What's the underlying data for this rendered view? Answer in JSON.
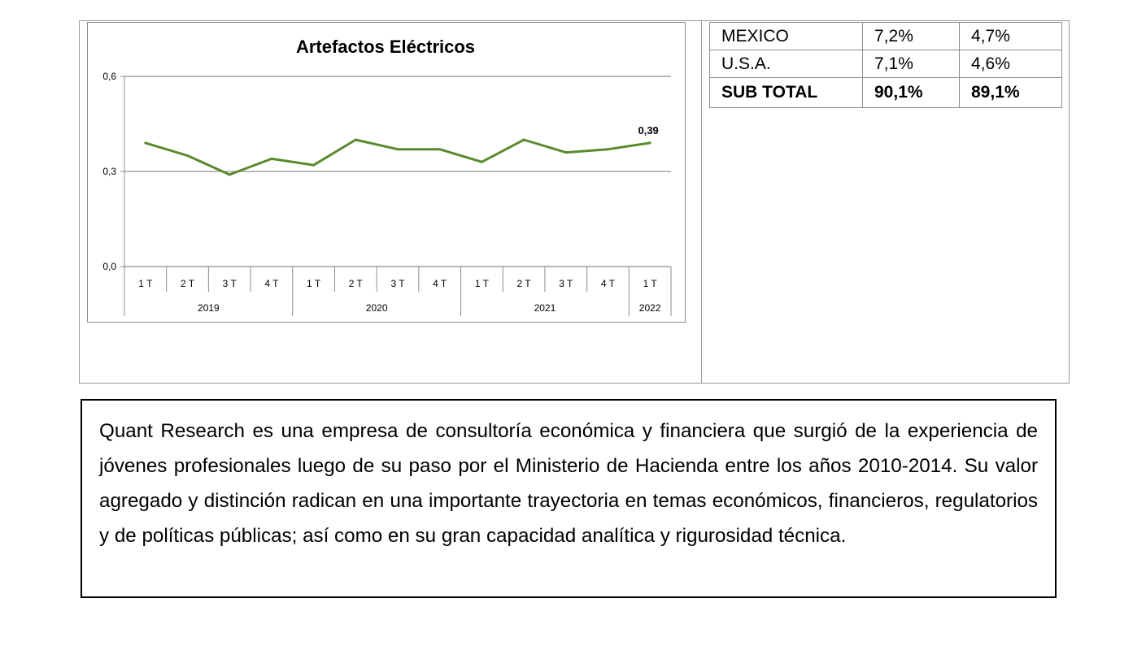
{
  "chart_data": {
    "type": "line",
    "title": "Artefactos Eléctricos",
    "xlabel": "",
    "ylabel": "",
    "ylim": [
      0.0,
      0.6
    ],
    "y_ticks": [
      "0,0",
      "0,3",
      "0,6"
    ],
    "grid": true,
    "categories": [
      "1 T",
      "2 T",
      "3 T",
      "4 T",
      "1 T",
      "2 T",
      "3 T",
      "4 T",
      "1 T",
      "2 T",
      "3 T",
      "4 T",
      "1 T"
    ],
    "category_years": [
      "2019",
      "2019",
      "2019",
      "2019",
      "2020",
      "2020",
      "2020",
      "2020",
      "2021",
      "2021",
      "2021",
      "2021",
      "2022"
    ],
    "year_groups": [
      {
        "label": "2019",
        "count": 4
      },
      {
        "label": "2020",
        "count": 4
      },
      {
        "label": "2021",
        "count": 4
      },
      {
        "label": "2022",
        "count": 1
      }
    ],
    "series": [
      {
        "values": [
          0.39,
          0.35,
          0.29,
          0.34,
          0.32,
          0.4,
          0.37,
          0.37,
          0.33,
          0.4,
          0.36,
          0.37,
          0.39
        ]
      }
    ],
    "data_labels": [
      {
        "index": 12,
        "text": "0,39"
      }
    ],
    "line_color": "#5a8a2e"
  },
  "table": {
    "rows": [
      {
        "country": "MEXICO",
        "v1": "7,2%",
        "v2": "4,7%"
      },
      {
        "country": "U.S.A.",
        "v1": "7,1%",
        "v2": "4,6%"
      }
    ],
    "total": {
      "label": "SUB TOTAL",
      "v1": "90,1%",
      "v2": "89,1%"
    }
  },
  "description": "Quant Research es una empresa de consultoría económica y financiera que surgió de la experiencia de jóvenes profesionales luego de su paso por el Ministerio de Hacienda entre los años 2010-2014. Su valor agregado y distinción radican en una importante trayectoria en temas económicos, financieros, regulatorios y de políticas públicas; así como en su gran capacidad analítica y rigurosidad técnica."
}
